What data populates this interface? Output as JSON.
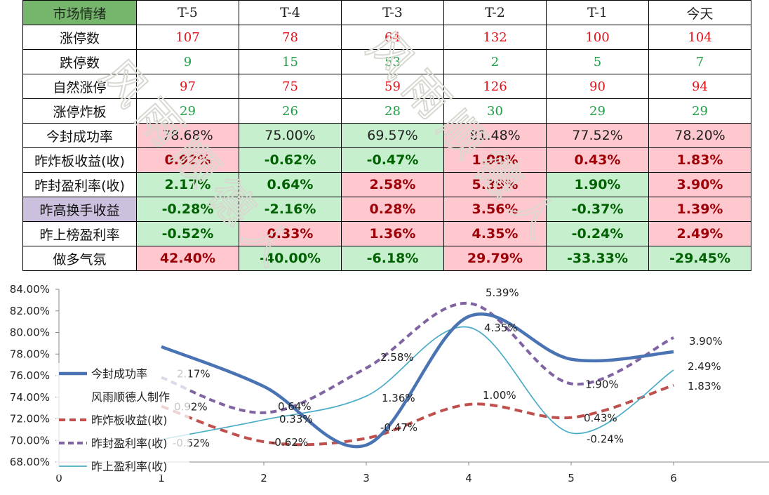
{
  "table": {
    "header": [
      "市场情绪",
      "T-5",
      "T-4",
      "T-3",
      "T-2",
      "T-1",
      "今天"
    ],
    "rows": [
      {
        "label": "涨停数",
        "values": [
          "107",
          "78",
          "64",
          "132",
          "100",
          "104"
        ]
      },
      {
        "label": "跌停数",
        "values": [
          "9",
          "15",
          "53",
          "2",
          "5",
          "7"
        ]
      },
      {
        "label": "自然涨停",
        "values": [
          "97",
          "75",
          "59",
          "126",
          "90",
          "94"
        ]
      },
      {
        "label": "涨停炸板",
        "values": [
          "29",
          "26",
          "28",
          "30",
          "29",
          "29"
        ]
      },
      {
        "label": "今封成功率",
        "values": [
          "78.68%",
          "75.00%",
          "69.57%",
          "81.48%",
          "77.52%",
          "78.20%"
        ]
      },
      {
        "label": "昨炸板收益(收)",
        "values": [
          "0.92%",
          "-0.62%",
          "-0.47%",
          "1.00%",
          "0.43%",
          "1.83%"
        ]
      },
      {
        "label": "昨封盈利率(收)",
        "values": [
          "2.17%",
          "0.64%",
          "2.58%",
          "5.39%",
          "1.90%",
          "3.90%"
        ]
      },
      {
        "label": "昨高换手收益",
        "values": [
          "-0.28%",
          "-2.16%",
          "0.28%",
          "3.56%",
          "-0.37%",
          "1.39%"
        ]
      },
      {
        "label": "昨上榜盈利率",
        "values": [
          "-0.52%",
          "0.33%",
          "1.36%",
          "4.35%",
          "-0.24%",
          "2.49%"
        ]
      },
      {
        "label": "做多气氛",
        "values": [
          "42.40%",
          "-40.00%",
          "-6.18%",
          "29.79%",
          "-33.33%",
          "-29.45%"
        ]
      }
    ]
  },
  "colors": {
    "header_green": "#76b56c",
    "positive_fill": "#ffc7ce",
    "positive_text": "#9c0006",
    "negative_fill": "#c6efce",
    "negative_text": "#006100",
    "count_red": "#e3131b",
    "count_green": "#1e9f46",
    "label_purple": "#cbc0dd",
    "series_success": "#4a73b3",
    "series_zhaban": "#c0504d",
    "series_fengying": "#8064a2",
    "series_shangbang": "#4bacc6",
    "watermark": "#d8d8d0"
  },
  "watermark": "风雨顺德人",
  "chart_data": {
    "type": "line",
    "xlim": [
      0,
      7
    ],
    "ylim": [
      68,
      84
    ],
    "x_ticks": [
      0,
      1,
      2,
      3,
      4,
      5,
      6
    ],
    "y_ticks": [
      68,
      70,
      72,
      74,
      76,
      78,
      80,
      82,
      84
    ],
    "y_tick_labels": [
      "68.00%",
      "70.00%",
      "72.00%",
      "74.00%",
      "76.00%",
      "78.00%",
      "80.00%",
      "82.00%",
      "84.00%"
    ],
    "grid": false,
    "legend_position": "left",
    "x": [
      1,
      2,
      3,
      4,
      5,
      6
    ],
    "primary_series": {
      "name": "今封成功率",
      "values": [
        78.68,
        75.0,
        69.57,
        81.48,
        77.52,
        78.2
      ],
      "style": "solid-thick"
    },
    "legend_note": "风雨顺德人制作",
    "secondary_series": [
      {
        "name": "昨炸板收益(收)",
        "values": [
          0.92,
          -0.62,
          -0.47,
          1.0,
          0.43,
          1.83
        ],
        "labels": [
          "0.92%",
          "-0.62%",
          "-0.47%",
          "1.00%",
          "0.43%",
          "1.83%"
        ],
        "style": "dashed"
      },
      {
        "name": "昨封盈利率(收)",
        "values": [
          2.17,
          0.64,
          2.58,
          5.39,
          1.9,
          3.9
        ],
        "labels": [
          "2.17%",
          "0.64%",
          "2.58%",
          "5.39%",
          "1.90%",
          "3.90%"
        ],
        "style": "dotted"
      },
      {
        "name": "昨上盈利率(收)",
        "values": [
          -0.52,
          0.33,
          1.36,
          4.35,
          -0.24,
          2.49
        ],
        "labels": [
          "-0.52%",
          "0.33%",
          "1.36%",
          "4.35%",
          "-0.24%",
          "2.49%"
        ],
        "style": "thin"
      }
    ],
    "secondary_ylim": [
      -1.5,
      6.0
    ]
  }
}
